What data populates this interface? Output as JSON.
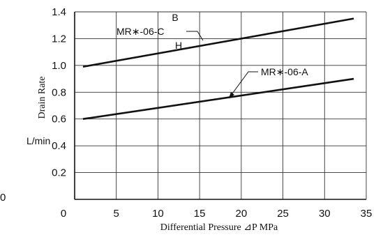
{
  "chart_data": {
    "type": "line",
    "xlabel": "Differential Pressure ⊿P MPa",
    "ylabel": "Drain Rate",
    "yunit": "L/min",
    "xlim": [
      0,
      35
    ],
    "ylim": [
      0,
      1.4
    ],
    "x_ticks": [
      "0",
      "5",
      "10",
      "15",
      "20",
      "25",
      "30",
      "35"
    ],
    "y_ticks": [
      "0.2",
      "0.4",
      "0.6",
      "0.8",
      "1.0",
      "1.2",
      "1.4"
    ],
    "stray_left_label": "0",
    "grid": true,
    "series": [
      {
        "name": "MR∗-06-C",
        "x": [
          1,
          33.5
        ],
        "y": [
          0.99,
          1.35
        ],
        "callout_above": "B",
        "callout_below": "H"
      },
      {
        "name": "MR∗-06-A",
        "x": [
          1,
          33.5
        ],
        "y": [
          0.6,
          0.9
        ]
      }
    ]
  }
}
